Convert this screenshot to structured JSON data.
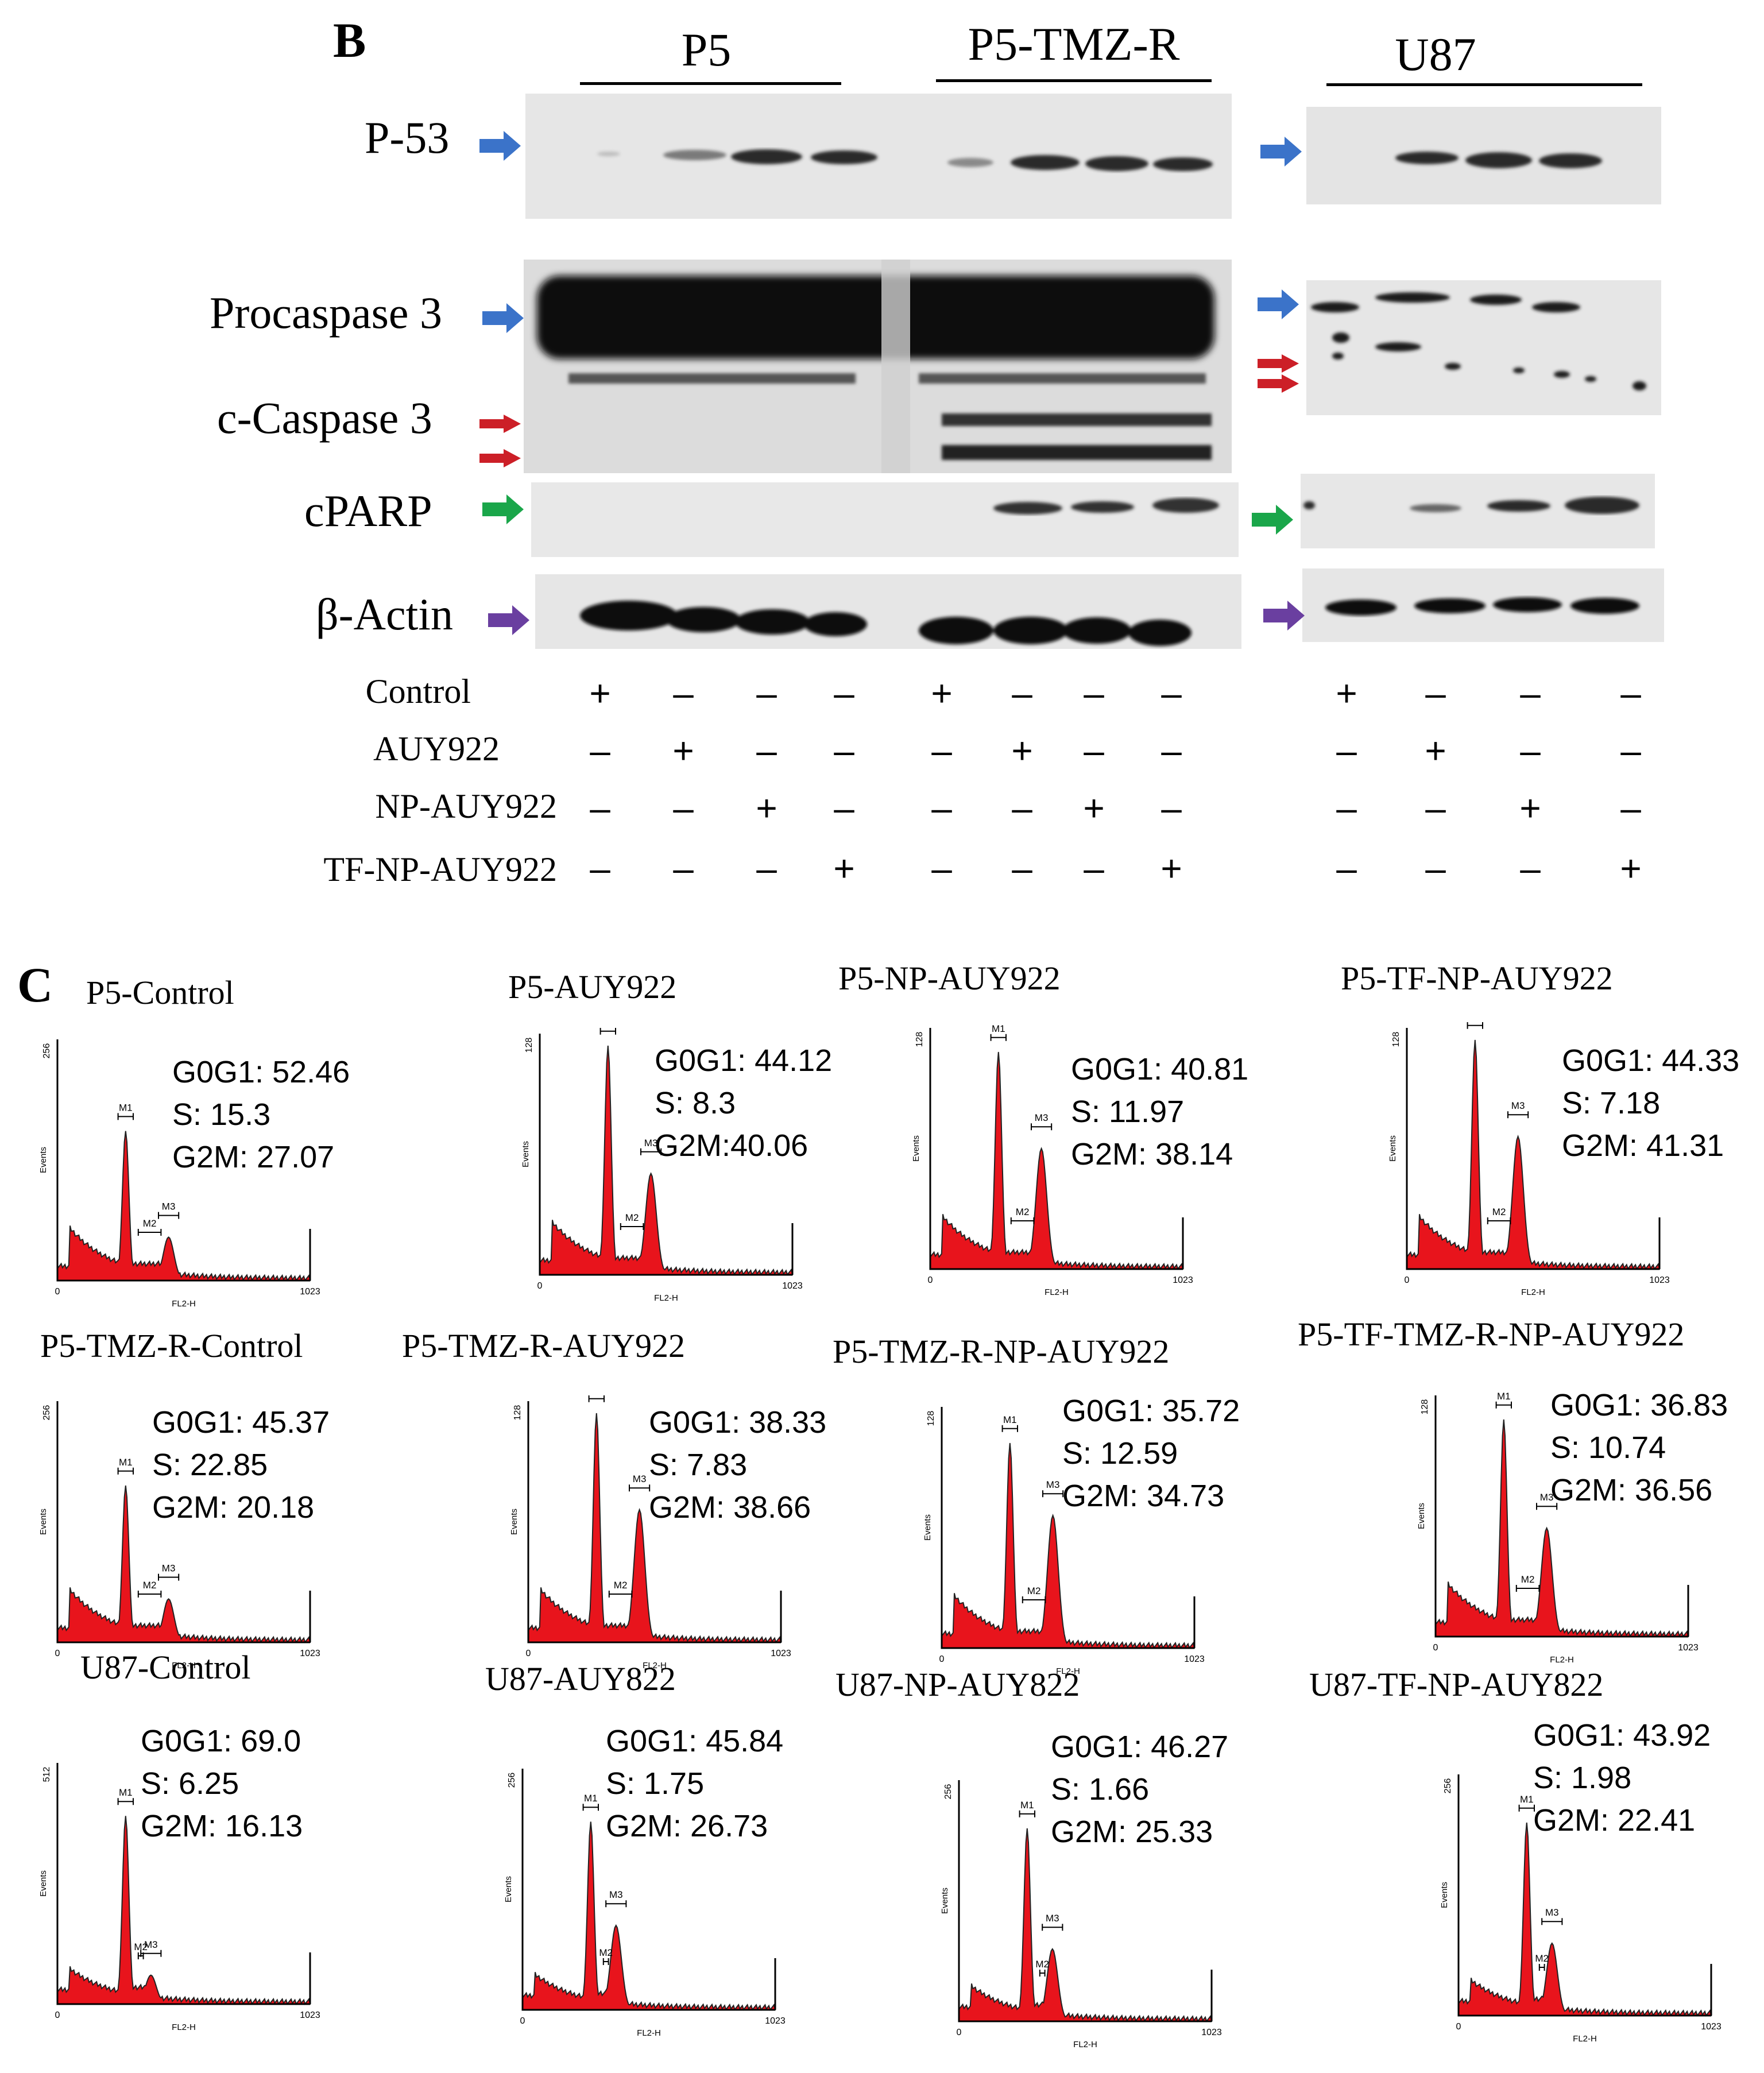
{
  "panel_b": {
    "letter": "B",
    "groups": [
      "P5",
      "P5-TMZ-R",
      "U87"
    ],
    "blots": [
      {
        "label": "P-53",
        "arrow_color": "#3b73c9"
      },
      {
        "label": "Procaspase 3",
        "arrow_color": "#3b73c9"
      },
      {
        "label": "c-Caspase 3",
        "arrow_color": "#cc1f27"
      },
      {
        "label": "cPARP",
        "arrow_color": "#1aa64a"
      },
      {
        "label": "β-Actin",
        "arrow_color": "#6a3fa0"
      }
    ],
    "conditions": [
      {
        "label": "Control",
        "signs": [
          "+",
          "-",
          "-",
          "-",
          "+",
          "-",
          "-",
          "-",
          "+",
          "-",
          "-",
          "-"
        ]
      },
      {
        "label": "AUY922",
        "signs": [
          "-",
          "+",
          "-",
          "-",
          "-",
          "+",
          "-",
          "-",
          "-",
          "+",
          "-",
          "-"
        ]
      },
      {
        "label": "NP-AUY922",
        "signs": [
          "-",
          "-",
          "+",
          "-",
          "-",
          "-",
          "+",
          "-",
          "-",
          "-",
          "+",
          "-"
        ]
      },
      {
        "label": "TF-NP-AUY922",
        "signs": [
          "-",
          "-",
          "-",
          "+",
          "-",
          "-",
          "-",
          "+",
          "-",
          "-",
          "-",
          "+"
        ]
      }
    ]
  },
  "panel_c": {
    "letter": "C",
    "histograms": [
      {
        "title": "P5-Control",
        "ymax": "256",
        "lines": [
          "G0G1: 52.46",
          "S: 15.3",
          "G2M: 27.07"
        ],
        "g1": 0.62,
        "g2": 0.18
      },
      {
        "title": "P5-AUY922",
        "ymax": "128",
        "lines": [
          "G0G1: 44.12",
          "S: 8.3",
          "G2M:40.06"
        ],
        "g1": 0.95,
        "g2": 0.42
      },
      {
        "title": "P5-NP-AUY922",
        "ymax": "128",
        "lines": [
          "G0G1: 40.81",
          "S: 11.97",
          "G2M: 38.14"
        ],
        "g1": 0.9,
        "g2": 0.5
      },
      {
        "title": "P5-TF-NP-AUY922",
        "ymax": "128",
        "lines": [
          "G0G1: 44.33",
          "S: 7.18",
          "G2M: 41.31"
        ],
        "g1": 0.95,
        "g2": 0.55
      },
      {
        "title": "P5-TMZ-R-Control",
        "ymax": "256",
        "lines": [
          "G0G1: 45.37",
          "S: 22.85",
          "G2M: 20.18"
        ],
        "g1": 0.65,
        "g2": 0.18
      },
      {
        "title": "P5-TMZ-R-AUY922",
        "ymax": "128",
        "lines": [
          "G0G1: 38.33",
          "S: 7.83",
          "G2M: 38.66"
        ],
        "g1": 0.95,
        "g2": 0.55
      },
      {
        "title": "P5-TMZ-R-NP-AUY922",
        "ymax": "128",
        "lines": [
          "G0G1: 35.72",
          "S: 12.59",
          "G2M: 34.73"
        ],
        "g1": 0.85,
        "g2": 0.55
      },
      {
        "title": "P5-TF-TMZ-R-NP-AUY922",
        "ymax": "128",
        "lines": [
          "G0G1: 36.83",
          "S: 10.74",
          "G2M: 36.56"
        ],
        "g1": 0.9,
        "g2": 0.45
      },
      {
        "title": "U87-Control",
        "ymax": "512",
        "lines": [
          "G0G1: 69.0",
          "S: 6.25",
          "G2M: 16.13"
        ],
        "g1": 0.78,
        "g2": 0.12
      },
      {
        "title": "U87-AUY822",
        "ymax": "256",
        "lines": [
          "G0G1: 45.84",
          "S: 1.75",
          "G2M: 26.73"
        ],
        "g1": 0.78,
        "g2": 0.35
      },
      {
        "title": "U87-NP-AUY822",
        "ymax": "256",
        "lines": [
          "G0G1: 46.27",
          "S: 1.66",
          "G2M: 25.33"
        ],
        "g1": 0.8,
        "g2": 0.3
      },
      {
        "title": "U87-TF-NP-AUY822",
        "ymax": "256",
        "lines": [
          "G0G1: 43.92",
          "S: 1.98",
          "G2M: 22.41"
        ],
        "g1": 0.8,
        "g2": 0.3
      }
    ],
    "axis": {
      "xlabel": "FL2-H",
      "ylabel": "Events",
      "xmin": "0",
      "xmax": "1023",
      "markers": [
        "M1",
        "M2",
        "M3"
      ]
    }
  }
}
